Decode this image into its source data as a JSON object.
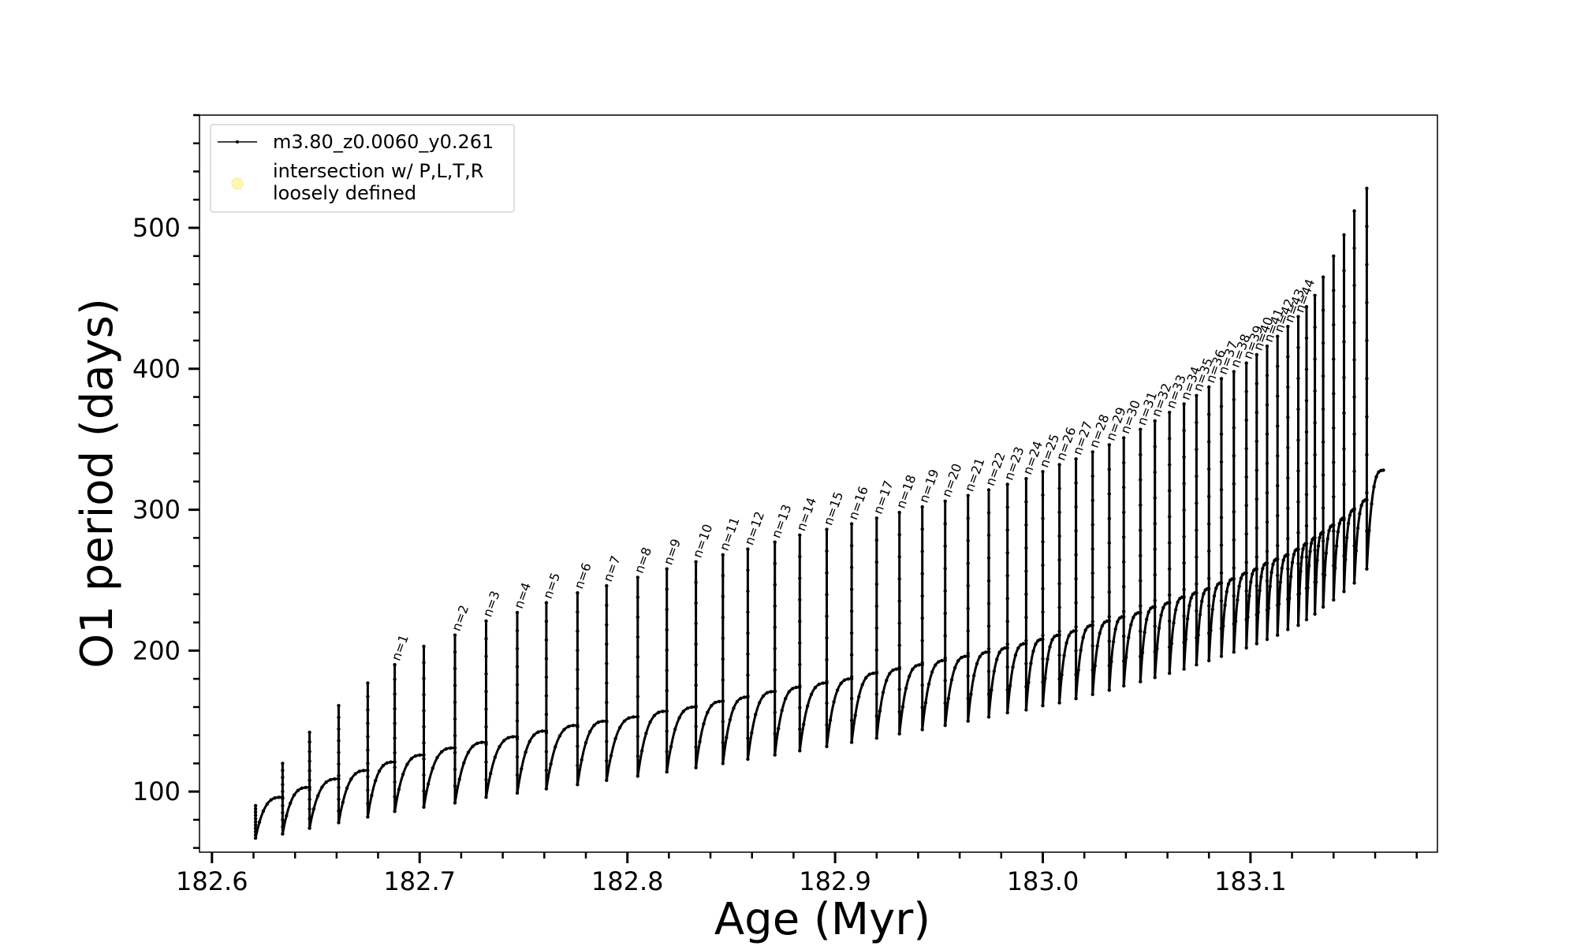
{
  "chart_data": {
    "type": "line",
    "xlabel": "Age (Myr)",
    "ylabel": "O1 period (days)",
    "xlim": [
      182.594,
      183.19
    ],
    "ylim": [
      57,
      580
    ],
    "x_ticks": [
      182.6,
      182.7,
      182.8,
      182.9,
      183.0,
      183.1
    ],
    "x_tick_labels": [
      "182.6",
      "182.7",
      "182.8",
      "182.9",
      "183.0",
      "183.1"
    ],
    "y_ticks": [
      100,
      200,
      300,
      400,
      500
    ],
    "y_tick_labels": [
      "100",
      "200",
      "300",
      "400",
      "500"
    ],
    "x_minor_step": 0.02,
    "y_minor_step": 20,
    "grid": false,
    "legend_position": "upper-left",
    "legend": [
      {
        "label": "m3.80_z0.0060_y0.261",
        "marker": "line-dot",
        "color": "#000000"
      },
      {
        "label": "intersection w/ P,L,T,R",
        "label2": "loosely defined",
        "marker": "circle",
        "color": "#fff9b0"
      }
    ],
    "series": [
      {
        "name": "m3.80_z0.0060_y0.261",
        "color": "#000000",
        "pulses": [
          {
            "x": 182.621,
            "peak": 90,
            "base": 67,
            "top": 96
          },
          {
            "x": 182.634,
            "peak": 120,
            "base": 70,
            "top": 103
          },
          {
            "x": 182.647,
            "peak": 142,
            "base": 74,
            "top": 109
          },
          {
            "x": 182.661,
            "peak": 161,
            "base": 78,
            "top": 115
          },
          {
            "x": 182.675,
            "peak": 177,
            "base": 82,
            "top": 121
          },
          {
            "x": 182.688,
            "peak": 190,
            "base": 86,
            "top": 126,
            "label": "n=1"
          },
          {
            "x": 182.702,
            "peak": 203,
            "base": 89,
            "top": 131
          },
          {
            "x": 182.717,
            "peak": 211,
            "base": 92,
            "top": 135,
            "label": "n=2"
          },
          {
            "x": 182.732,
            "peak": 221,
            "base": 96,
            "top": 139,
            "label": "n=3"
          },
          {
            "x": 182.747,
            "peak": 227,
            "base": 99,
            "top": 143,
            "label": "n=4"
          },
          {
            "x": 182.761,
            "peak": 234,
            "base": 102,
            "top": 147,
            "label": "n=5"
          },
          {
            "x": 182.776,
            "peak": 241,
            "base": 105,
            "top": 150,
            "label": "n=6"
          },
          {
            "x": 182.79,
            "peak": 246,
            "base": 108,
            "top": 153,
            "label": "n=7"
          },
          {
            "x": 182.805,
            "peak": 252,
            "base": 111,
            "top": 157,
            "label": "n=8"
          },
          {
            "x": 182.819,
            "peak": 258,
            "base": 114,
            "top": 160,
            "label": "n=9"
          },
          {
            "x": 182.833,
            "peak": 263,
            "base": 117,
            "top": 164,
            "label": "n=10"
          },
          {
            "x": 182.846,
            "peak": 268,
            "base": 120,
            "top": 167,
            "label": "n=11"
          },
          {
            "x": 182.858,
            "peak": 272,
            "base": 123,
            "top": 171,
            "label": "n=12"
          },
          {
            "x": 182.871,
            "peak": 277,
            "base": 126,
            "top": 174,
            "label": "n=13"
          },
          {
            "x": 182.883,
            "peak": 282,
            "base": 129,
            "top": 177,
            "label": "n=14"
          },
          {
            "x": 182.896,
            "peak": 286,
            "base": 132,
            "top": 180,
            "label": "n=15"
          },
          {
            "x": 182.908,
            "peak": 290,
            "base": 135,
            "top": 184,
            "label": "n=16"
          },
          {
            "x": 182.92,
            "peak": 294,
            "base": 138,
            "top": 187,
            "label": "n=17"
          },
          {
            "x": 182.931,
            "peak": 298,
            "base": 141,
            "top": 190,
            "label": "n=18"
          },
          {
            "x": 182.942,
            "peak": 302,
            "base": 144,
            "top": 193,
            "label": "n=19"
          },
          {
            "x": 182.953,
            "peak": 306,
            "base": 147,
            "top": 196,
            "label": "n=20"
          },
          {
            "x": 182.964,
            "peak": 310,
            "base": 150,
            "top": 199,
            "label": "n=21"
          },
          {
            "x": 182.974,
            "peak": 314,
            "base": 153,
            "top": 202,
            "label": "n=22"
          },
          {
            "x": 182.983,
            "peak": 318,
            "base": 156,
            "top": 205,
            "label": "n=23"
          },
          {
            "x": 182.992,
            "peak": 322,
            "base": 158,
            "top": 208,
            "label": "n=24"
          },
          {
            "x": 183.0,
            "peak": 327,
            "base": 161,
            "top": 211,
            "label": "n=25"
          },
          {
            "x": 183.008,
            "peak": 332,
            "base": 163,
            "top": 214,
            "label": "n=26"
          },
          {
            "x": 183.016,
            "peak": 336,
            "base": 166,
            "top": 218,
            "label": "n=27"
          },
          {
            "x": 183.024,
            "peak": 341,
            "base": 169,
            "top": 221,
            "label": "n=28"
          },
          {
            "x": 183.032,
            "peak": 346,
            "base": 172,
            "top": 224,
            "label": "n=29"
          },
          {
            "x": 183.039,
            "peak": 351,
            "base": 175,
            "top": 227,
            "label": "n=30"
          },
          {
            "x": 183.047,
            "peak": 357,
            "base": 178,
            "top": 231,
            "label": "n=31"
          },
          {
            "x": 183.054,
            "peak": 363,
            "base": 181,
            "top": 234,
            "label": "n=32"
          },
          {
            "x": 183.061,
            "peak": 369,
            "base": 184,
            "top": 238,
            "label": "n=33"
          },
          {
            "x": 183.068,
            "peak": 375,
            "base": 187,
            "top": 241,
            "label": "n=34"
          },
          {
            "x": 183.074,
            "peak": 381,
            "base": 190,
            "top": 244,
            "label": "n=35"
          },
          {
            "x": 183.08,
            "peak": 387,
            "base": 193,
            "top": 248,
            "label": "n=36"
          },
          {
            "x": 183.086,
            "peak": 393,
            "base": 196,
            "top": 251,
            "label": "n=37"
          },
          {
            "x": 183.092,
            "peak": 398,
            "base": 199,
            "top": 255,
            "label": "n=38"
          },
          {
            "x": 183.098,
            "peak": 404,
            "base": 202,
            "top": 258,
            "label": "n=39"
          },
          {
            "x": 183.103,
            "peak": 410,
            "base": 205,
            "top": 262,
            "label": "n=40"
          },
          {
            "x": 183.108,
            "peak": 416,
            "base": 208,
            "top": 265,
            "label": "n=41"
          },
          {
            "x": 183.113,
            "peak": 423,
            "base": 211,
            "top": 268,
            "label": "n=42"
          },
          {
            "x": 183.118,
            "peak": 430,
            "base": 215,
            "top": 272,
            "label": "n=43"
          },
          {
            "x": 183.123,
            "peak": 437,
            "base": 218,
            "top": 276,
            "label": "n=44"
          },
          {
            "x": 183.127,
            "peak": 444,
            "base": 222,
            "top": 280
          },
          {
            "x": 183.131,
            "peak": 452,
            "base": 226,
            "top": 284
          },
          {
            "x": 183.135,
            "peak": 465,
            "base": 231,
            "top": 289
          },
          {
            "x": 183.14,
            "peak": 480,
            "base": 236,
            "top": 294
          },
          {
            "x": 183.145,
            "peak": 495,
            "base": 242,
            "top": 300
          },
          {
            "x": 183.15,
            "peak": 512,
            "base": 248,
            "top": 307
          },
          {
            "x": 183.156,
            "peak": 528,
            "base": 258,
            "top": 315
          }
        ],
        "end": {
          "x": 183.164,
          "y": 328
        }
      }
    ]
  }
}
